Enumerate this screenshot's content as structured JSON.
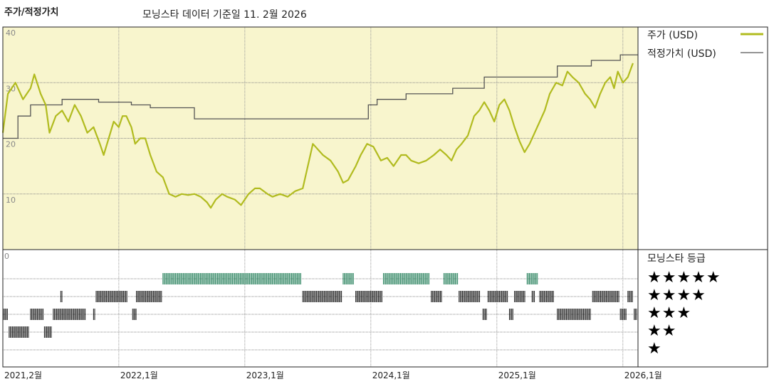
{
  "header": {
    "title": "주가/적정가치",
    "subtitle": "모닝스타 데이터 기준일 11. 2월 2026"
  },
  "legend": {
    "price_label": "주가 (USD)",
    "fair_value_label": "적정가치 (USD)",
    "rating_title": "모닝스타 등급"
  },
  "colors": {
    "panel_bg": "#f8f5cd",
    "price_line": "#b1bb1f",
    "fair_value_line": "#555555",
    "rating5": "#3f8f6e",
    "rating_other": "#333333"
  },
  "ratings": [
    "★★★★★",
    "★★★★",
    "★★★",
    "★★",
    "★"
  ],
  "chart_data": {
    "type": "line",
    "xlim": [
      2021.08,
      2026.12
    ],
    "ylim": [
      0,
      40
    ],
    "y_ticks": [
      "40",
      "30",
      "20",
      "10"
    ],
    "rating_axis_label": "0",
    "x_ticks": [
      {
        "x": 2021.08,
        "label": "2021,2월"
      },
      {
        "x": 2022.0,
        "label": "2022,1월"
      },
      {
        "x": 2023.0,
        "label": "2023,1월"
      },
      {
        "x": 2024.0,
        "label": "2024,1월"
      },
      {
        "x": 2025.0,
        "label": "2025,1월"
      },
      {
        "x": 2026.0,
        "label": "2026,1월"
      }
    ],
    "series": [
      {
        "name": "주가 (USD)",
        "points": [
          [
            2021.08,
            21
          ],
          [
            2021.12,
            28
          ],
          [
            2021.18,
            30
          ],
          [
            2021.24,
            27
          ],
          [
            2021.3,
            29
          ],
          [
            2021.33,
            31.5
          ],
          [
            2021.38,
            28
          ],
          [
            2021.42,
            26
          ],
          [
            2021.45,
            21
          ],
          [
            2021.5,
            24
          ],
          [
            2021.55,
            25
          ],
          [
            2021.6,
            23
          ],
          [
            2021.65,
            26
          ],
          [
            2021.7,
            24
          ],
          [
            2021.75,
            21
          ],
          [
            2021.8,
            22
          ],
          [
            2021.85,
            19
          ],
          [
            2021.88,
            17
          ],
          [
            2021.92,
            20
          ],
          [
            2021.96,
            23
          ],
          [
            2022.0,
            22
          ],
          [
            2022.03,
            24
          ],
          [
            2022.06,
            24
          ],
          [
            2022.1,
            22
          ],
          [
            2022.13,
            19
          ],
          [
            2022.17,
            20
          ],
          [
            2022.21,
            20
          ],
          [
            2022.25,
            17
          ],
          [
            2022.3,
            14
          ],
          [
            2022.35,
            13
          ],
          [
            2022.4,
            10
          ],
          [
            2022.45,
            9.5
          ],
          [
            2022.5,
            10
          ],
          [
            2022.55,
            9.8
          ],
          [
            2022.6,
            10
          ],
          [
            2022.65,
            9.5
          ],
          [
            2022.7,
            8.5
          ],
          [
            2022.73,
            7.5
          ],
          [
            2022.77,
            9
          ],
          [
            2022.82,
            10
          ],
          [
            2022.86,
            9.5
          ],
          [
            2022.92,
            9
          ],
          [
            2022.97,
            8
          ],
          [
            2023.03,
            10
          ],
          [
            2023.08,
            11
          ],
          [
            2023.12,
            11
          ],
          [
            2023.18,
            10
          ],
          [
            2023.22,
            9.5
          ],
          [
            2023.28,
            10
          ],
          [
            2023.34,
            9.5
          ],
          [
            2023.4,
            10.5
          ],
          [
            2023.46,
            11
          ],
          [
            2023.5,
            15
          ],
          [
            2023.54,
            19
          ],
          [
            2023.58,
            18
          ],
          [
            2023.62,
            17
          ],
          [
            2023.68,
            16
          ],
          [
            2023.74,
            14
          ],
          [
            2023.78,
            12
          ],
          [
            2023.82,
            12.5
          ],
          [
            2023.88,
            15
          ],
          [
            2023.92,
            17
          ],
          [
            2023.97,
            19
          ],
          [
            2024.02,
            18.5
          ],
          [
            2024.08,
            16
          ],
          [
            2024.13,
            16.5
          ],
          [
            2024.18,
            15
          ],
          [
            2024.24,
            17
          ],
          [
            2024.28,
            17
          ],
          [
            2024.32,
            16
          ],
          [
            2024.38,
            15.5
          ],
          [
            2024.44,
            16
          ],
          [
            2024.5,
            17
          ],
          [
            2024.55,
            18
          ],
          [
            2024.6,
            17
          ],
          [
            2024.64,
            16
          ],
          [
            2024.68,
            18
          ],
          [
            2024.72,
            19
          ],
          [
            2024.77,
            20.5
          ],
          [
            2024.82,
            24
          ],
          [
            2024.86,
            25
          ],
          [
            2024.9,
            26.5
          ],
          [
            2024.94,
            25
          ],
          [
            2024.98,
            23
          ],
          [
            2025.02,
            26
          ],
          [
            2025.06,
            27
          ],
          [
            2025.1,
            25
          ],
          [
            2025.14,
            22
          ],
          [
            2025.18,
            19.5
          ],
          [
            2025.22,
            17.5
          ],
          [
            2025.26,
            19
          ],
          [
            2025.3,
            21
          ],
          [
            2025.34,
            23
          ],
          [
            2025.38,
            25
          ],
          [
            2025.42,
            28
          ],
          [
            2025.47,
            30
          ],
          [
            2025.52,
            29.5
          ],
          [
            2025.56,
            32
          ],
          [
            2025.6,
            31
          ],
          [
            2025.65,
            30
          ],
          [
            2025.7,
            28
          ],
          [
            2025.74,
            27
          ],
          [
            2025.78,
            25.5
          ],
          [
            2025.82,
            28
          ],
          [
            2025.86,
            30
          ],
          [
            2025.9,
            31
          ],
          [
            2025.93,
            29
          ],
          [
            2025.96,
            32
          ],
          [
            2026.0,
            30
          ],
          [
            2026.04,
            31
          ],
          [
            2026.08,
            33.5
          ]
        ]
      },
      {
        "name": "적정가치 (USD)",
        "points": [
          [
            2021.08,
            20
          ],
          [
            2021.2,
            20
          ],
          [
            2021.2,
            24
          ],
          [
            2021.3,
            24
          ],
          [
            2021.3,
            26
          ],
          [
            2021.55,
            26
          ],
          [
            2021.55,
            27
          ],
          [
            2021.84,
            27
          ],
          [
            2021.84,
            26.5
          ],
          [
            2022.1,
            26.5
          ],
          [
            2022.1,
            26
          ],
          [
            2022.25,
            26
          ],
          [
            2022.25,
            25.5
          ],
          [
            2022.6,
            25.5
          ],
          [
            2022.6,
            23.5
          ],
          [
            2023.98,
            23.5
          ],
          [
            2023.98,
            26
          ],
          [
            2024.05,
            26
          ],
          [
            2024.05,
            27
          ],
          [
            2024.28,
            27
          ],
          [
            2024.28,
            28
          ],
          [
            2024.65,
            28
          ],
          [
            2024.65,
            29
          ],
          [
            2024.9,
            29
          ],
          [
            2024.9,
            31
          ],
          [
            2025.48,
            31
          ],
          [
            2025.48,
            33
          ],
          [
            2025.75,
            33
          ],
          [
            2025.75,
            34
          ],
          [
            2025.98,
            34
          ],
          [
            2025.98,
            35
          ],
          [
            2026.12,
            35
          ]
        ]
      }
    ],
    "ratings_timeline": [
      {
        "stars": 5,
        "from": 2022.35,
        "to": 2023.45
      },
      {
        "stars": 5,
        "from": 2023.78,
        "to": 2023.87
      },
      {
        "stars": 5,
        "from": 2024.1,
        "to": 2024.47
      },
      {
        "stars": 5,
        "from": 2024.58,
        "to": 2024.69
      },
      {
        "stars": 5,
        "from": 2025.24,
        "to": 2025.33
      },
      {
        "stars": 4,
        "from": 2021.54,
        "to": 2021.55
      },
      {
        "stars": 4,
        "from": 2021.82,
        "to": 2022.07
      },
      {
        "stars": 4,
        "from": 2022.14,
        "to": 2022.34
      },
      {
        "stars": 4,
        "from": 2023.46,
        "to": 2023.77
      },
      {
        "stars": 4,
        "from": 2023.88,
        "to": 2024.09
      },
      {
        "stars": 4,
        "from": 2024.48,
        "to": 2024.57
      },
      {
        "stars": 4,
        "from": 2024.7,
        "to": 2024.87
      },
      {
        "stars": 4,
        "from": 2024.93,
        "to": 2025.09
      },
      {
        "stars": 4,
        "from": 2025.14,
        "to": 2025.23
      },
      {
        "stars": 4,
        "from": 2025.28,
        "to": 2025.3
      },
      {
        "stars": 4,
        "from": 2025.34,
        "to": 2025.45
      },
      {
        "stars": 4,
        "from": 2025.76,
        "to": 2025.97
      },
      {
        "stars": 4,
        "from": 2026.04,
        "to": 2026.08
      },
      {
        "stars": 3,
        "from": 2021.08,
        "to": 2021.12
      },
      {
        "stars": 3,
        "from": 2021.3,
        "to": 2021.4
      },
      {
        "stars": 3,
        "from": 2021.48,
        "to": 2021.74
      },
      {
        "stars": 3,
        "from": 2021.8,
        "to": 2021.81
      },
      {
        "stars": 3,
        "from": 2022.11,
        "to": 2022.14
      },
      {
        "stars": 3,
        "from": 2024.89,
        "to": 2024.92
      },
      {
        "stars": 3,
        "from": 2025.1,
        "to": 2025.13
      },
      {
        "stars": 3,
        "from": 2025.48,
        "to": 2025.75
      },
      {
        "stars": 3,
        "from": 2025.98,
        "to": 2026.03
      },
      {
        "stars": 3,
        "from": 2026.09,
        "to": 2026.11
      },
      {
        "stars": 2,
        "from": 2021.13,
        "to": 2021.29
      },
      {
        "stars": 2,
        "from": 2021.41,
        "to": 2021.47
      }
    ]
  }
}
